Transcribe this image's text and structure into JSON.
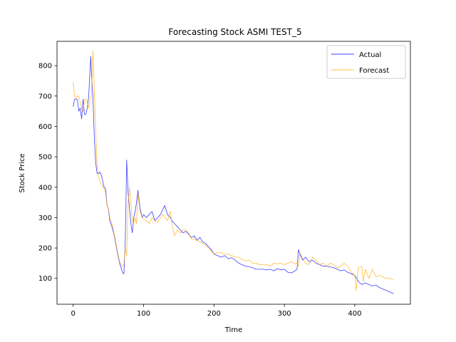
{
  "chart_data": {
    "type": "line",
    "title": "Forecasting Stock ASMI TEST_5",
    "xlabel": "Time",
    "ylabel": "Stock Price",
    "xlim": [
      -23,
      479
    ],
    "ylim": [
      15,
      880
    ],
    "xticks": [
      0,
      100,
      200,
      300,
      400
    ],
    "yticks": [
      100,
      200,
      300,
      400,
      500,
      600,
      700,
      800
    ],
    "grid": false,
    "legend_position": "top-right",
    "series": [
      {
        "name": "Actual",
        "color": "#0000ff",
        "x": [
          0,
          2,
          4,
          6,
          8,
          10,
          12,
          14,
          16,
          18,
          20,
          22,
          24,
          25,
          26,
          28,
          30,
          32,
          34,
          36,
          38,
          40,
          42,
          44,
          46,
          48,
          50,
          52,
          55,
          58,
          60,
          62,
          64,
          66,
          68,
          70,
          72,
          74,
          75,
          76,
          78,
          80,
          82,
          84,
          86,
          88,
          90,
          92,
          95,
          98,
          100,
          104,
          108,
          112,
          116,
          120,
          124,
          128,
          130,
          134,
          138,
          140,
          144,
          148,
          152,
          156,
          160,
          164,
          168,
          172,
          176,
          180,
          184,
          188,
          192,
          196,
          200,
          205,
          210,
          215,
          220,
          225,
          230,
          235,
          240,
          245,
          250,
          255,
          260,
          265,
          270,
          275,
          280,
          285,
          290,
          295,
          300,
          305,
          310,
          315,
          318,
          320,
          322,
          326,
          330,
          335,
          340,
          345,
          350,
          355,
          360,
          365,
          370,
          375,
          380,
          385,
          390,
          395,
          400,
          405,
          410,
          415,
          420,
          425,
          430,
          435,
          440,
          445,
          450,
          455
        ],
        "y": [
          665,
          690,
          690,
          688,
          650,
          660,
          625,
          690,
          640,
          640,
          660,
          700,
          790,
          830,
          770,
          700,
          560,
          480,
          445,
          445,
          450,
          440,
          420,
          400,
          395,
          340,
          330,
          290,
          270,
          245,
          220,
          195,
          170,
          150,
          135,
          120,
          115,
          220,
          350,
          490,
          380,
          330,
          280,
          250,
          300,
          320,
          350,
          390,
          330,
          300,
          310,
          300,
          310,
          320,
          290,
          300,
          310,
          330,
          340,
          310,
          300,
          290,
          280,
          270,
          260,
          250,
          255,
          245,
          235,
          240,
          225,
          235,
          220,
          215,
          205,
          195,
          180,
          175,
          170,
          175,
          165,
          168,
          160,
          150,
          145,
          140,
          138,
          135,
          130,
          130,
          130,
          128,
          130,
          125,
          132,
          128,
          130,
          120,
          118,
          125,
          130,
          195,
          180,
          160,
          170,
          155,
          160,
          150,
          145,
          140,
          140,
          138,
          135,
          130,
          125,
          128,
          120,
          115,
          110,
          90,
          80,
          85,
          80,
          75,
          78,
          70,
          65,
          60,
          55,
          50
        ]
      },
      {
        "name": "Forecast",
        "color": "#ffa500",
        "x": [
          0,
          2,
          4,
          6,
          8,
          10,
          12,
          14,
          16,
          18,
          20,
          22,
          24,
          26,
          28,
          30,
          32,
          34,
          36,
          38,
          40,
          42,
          44,
          46,
          48,
          50,
          52,
          55,
          58,
          60,
          62,
          64,
          66,
          68,
          70,
          72,
          74,
          76,
          78,
          80,
          82,
          84,
          86,
          88,
          90,
          92,
          95,
          98,
          100,
          104,
          108,
          112,
          116,
          120,
          124,
          128,
          130,
          134,
          138,
          140,
          144,
          148,
          152,
          156,
          160,
          164,
          168,
          172,
          176,
          180,
          184,
          188,
          192,
          196,
          200,
          205,
          210,
          215,
          220,
          225,
          230,
          235,
          240,
          245,
          250,
          255,
          260,
          265,
          270,
          275,
          280,
          285,
          290,
          295,
          300,
          305,
          310,
          315,
          318,
          320,
          322,
          324,
          326,
          330,
          335,
          340,
          345,
          350,
          355,
          360,
          365,
          370,
          375,
          380,
          385,
          390,
          395,
          400,
          402,
          405,
          410,
          412,
          415,
          420,
          425,
          430,
          435,
          440,
          445,
          450,
          455
        ],
        "y": [
          745,
          700,
          690,
          700,
          700,
          680,
          660,
          650,
          690,
          690,
          680,
          660,
          690,
          700,
          850,
          720,
          580,
          470,
          430,
          420,
          410,
          400,
          395,
          380,
          340,
          330,
          300,
          280,
          250,
          225,
          200,
          175,
          155,
          145,
          140,
          145,
          200,
          175,
          350,
          400,
          350,
          290,
          280,
          300,
          280,
          380,
          320,
          300,
          295,
          290,
          280,
          300,
          290,
          285,
          300,
          310,
          300,
          290,
          320,
          280,
          240,
          260,
          250,
          260,
          260,
          250,
          230,
          230,
          225,
          220,
          215,
          210,
          200,
          190,
          180,
          185,
          185,
          180,
          180,
          175,
          170,
          170,
          162,
          158,
          160,
          150,
          150,
          145,
          145,
          145,
          140,
          150,
          148,
          150,
          145,
          150,
          155,
          148,
          150,
          140,
          185,
          175,
          165,
          150,
          145,
          170,
          160,
          145,
          150,
          140,
          150,
          145,
          135,
          140,
          150,
          140,
          120,
          110,
          60,
          135,
          140,
          90,
          130,
          100,
          130,
          105,
          110,
          105,
          100,
          100,
          95
        ]
      }
    ]
  }
}
